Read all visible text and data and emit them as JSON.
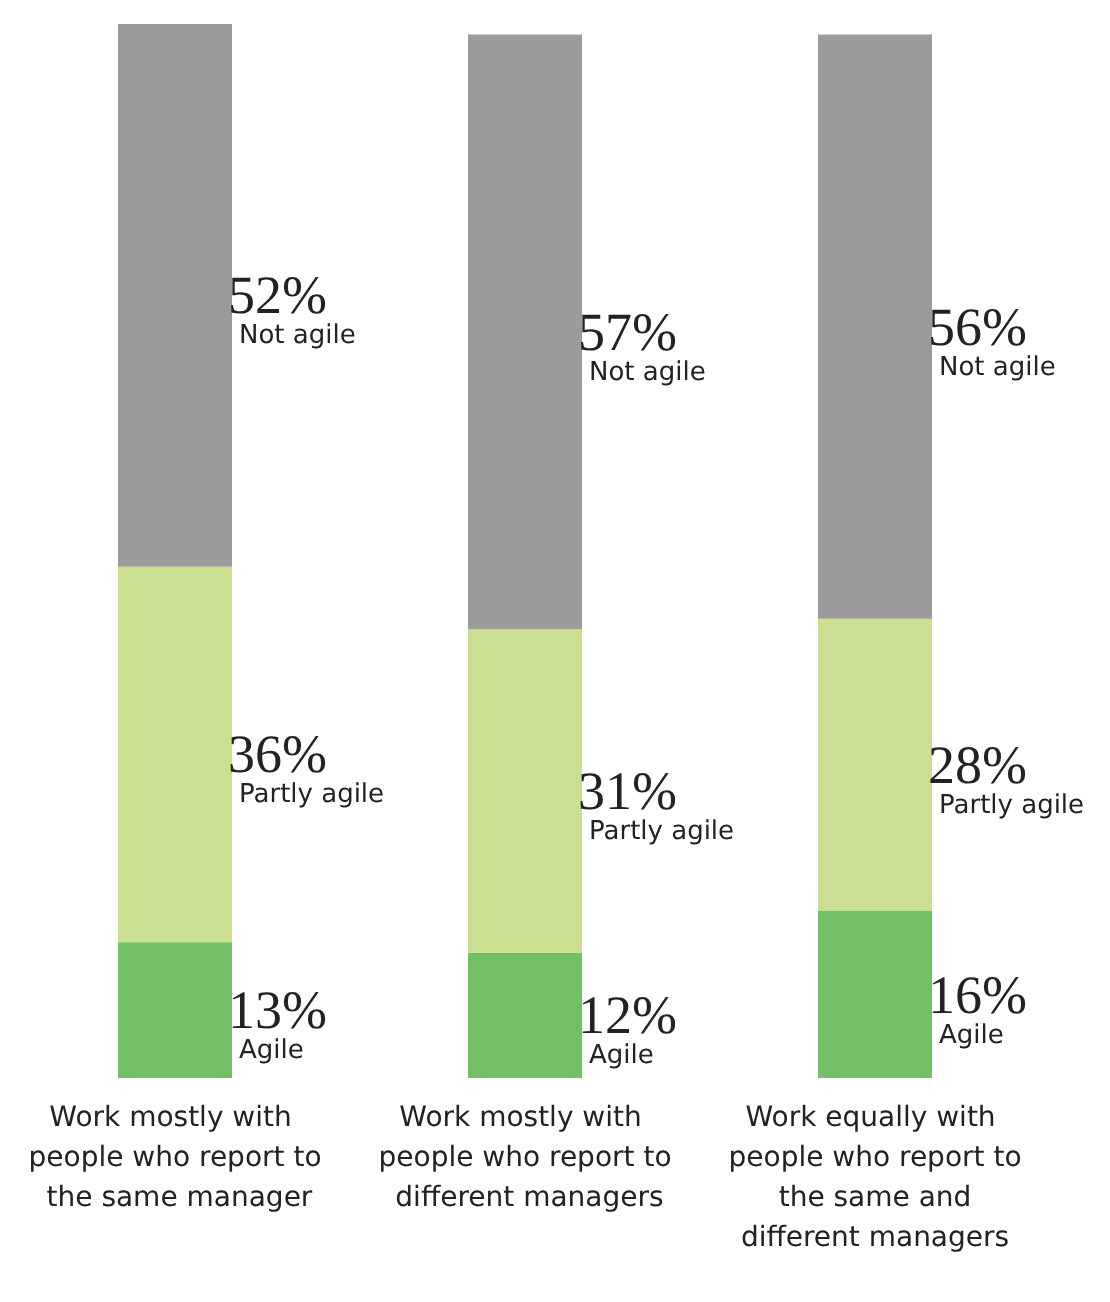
{
  "chart_data": {
    "type": "bar",
    "stacked": true,
    "categories": [
      "Work mostly with people who report to the same manager",
      "Work mostly with people who report to different managers",
      "Work equally with people who report to the same and different managers"
    ],
    "series": [
      {
        "name": "Agile",
        "color": "#72bf66",
        "values": [
          13,
          12,
          16
        ],
        "value_labels": [
          "13%",
          "12%",
          "16%"
        ]
      },
      {
        "name": "Partly agile",
        "color": "#cadf8f",
        "values": [
          36,
          31,
          28
        ],
        "value_labels": [
          "36%",
          "31%",
          "28%"
        ]
      },
      {
        "name": "Not agile",
        "color": "#9b9b9e",
        "values": [
          52,
          57,
          56
        ],
        "value_labels": [
          "52%",
          "57%",
          "56%"
        ]
      }
    ],
    "legend": false,
    "grid": false
  }
}
